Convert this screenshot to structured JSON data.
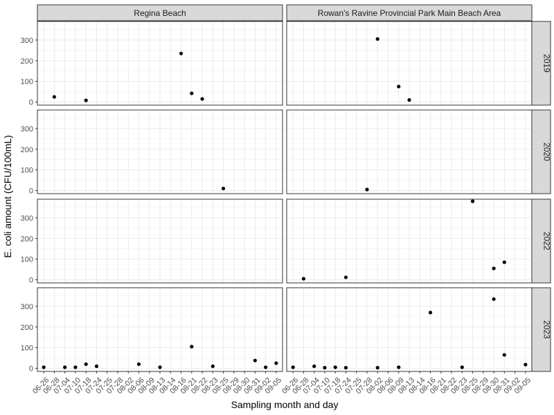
{
  "chart_data": {
    "type": "scatter",
    "facet_columns": [
      "Regina Beach",
      "Rowan's Ravine Provincial Park Main Beach Area"
    ],
    "facet_rows": [
      "2019",
      "2020",
      "2022",
      "2023"
    ],
    "xlabel": "Sampling month and day",
    "ylabel": "E. coli amount (CFU/100mL)",
    "x_categories": [
      "06-26",
      "06-28",
      "07-04",
      "07-10",
      "07-18",
      "07-24",
      "07-25",
      "07-28",
      "08-02",
      "08-06",
      "08-09",
      "08-13",
      "08-14",
      "08-16",
      "08-21",
      "08-22",
      "08-23",
      "08-25",
      "08-29",
      "08-30",
      "08-31",
      "09-02",
      "09-05"
    ],
    "x_tick_labels": [
      "06-26",
      "06-28",
      "07-04",
      "07-10",
      "07-18",
      "07-24",
      "07-25",
      "07-28",
      "08-02",
      "08-06",
      "08-09",
      "08-13",
      "08-14",
      "08-16",
      "08-21",
      "08-22",
      "08-23",
      "08-25",
      "08-29",
      "08-30",
      "08-31",
      "09-02",
      "09-05"
    ],
    "ylim": [
      -15,
      390
    ],
    "y_ticks": [
      0,
      100,
      200,
      300
    ],
    "grid": true,
    "legend": "none",
    "panels": [
      {
        "column": "Regina Beach",
        "row": "2019",
        "points": [
          [
            "06-28",
            25
          ],
          [
            "07-18",
            8
          ],
          [
            "08-16",
            235
          ],
          [
            "08-21",
            42
          ],
          [
            "08-22",
            15
          ]
        ]
      },
      {
        "column": "Rowan's Ravine Provincial Park Main Beach Area",
        "row": "2019",
        "points": [
          [
            "08-02",
            305
          ],
          [
            "08-09",
            75
          ],
          [
            "08-13",
            10
          ]
        ]
      },
      {
        "column": "Regina Beach",
        "row": "2020",
        "points": [
          [
            "08-25",
            10
          ]
        ]
      },
      {
        "column": "Rowan's Ravine Provincial Park Main Beach Area",
        "row": "2020",
        "points": [
          [
            "07-28",
            5
          ]
        ]
      },
      {
        "column": "Regina Beach",
        "row": "2022",
        "points": []
      },
      {
        "column": "Rowan's Ravine Provincial Park Main Beach Area",
        "row": "2022",
        "points": [
          [
            "06-28",
            5
          ],
          [
            "07-24",
            12
          ],
          [
            "08-25",
            380
          ],
          [
            "08-30",
            55
          ],
          [
            "08-31",
            85
          ]
        ]
      },
      {
        "column": "Regina Beach",
        "row": "2023",
        "points": [
          [
            "06-26",
            5
          ],
          [
            "07-04",
            5
          ],
          [
            "07-10",
            5
          ],
          [
            "07-18",
            20
          ],
          [
            "07-24",
            10
          ],
          [
            "08-06",
            20
          ],
          [
            "08-13",
            5
          ],
          [
            "08-21",
            105
          ],
          [
            "08-23",
            10
          ],
          [
            "08-31",
            38
          ],
          [
            "09-02",
            5
          ],
          [
            "09-05",
            25
          ]
        ]
      },
      {
        "column": "Rowan's Ravine Provincial Park Main Beach Area",
        "row": "2023",
        "points": [
          [
            "06-26",
            5
          ],
          [
            "07-04",
            10
          ],
          [
            "07-10",
            3
          ],
          [
            "07-18",
            5
          ],
          [
            "07-24",
            3
          ],
          [
            "08-02",
            3
          ],
          [
            "08-09",
            5
          ],
          [
            "08-16",
            270
          ],
          [
            "08-23",
            5
          ],
          [
            "08-30",
            335
          ],
          [
            "08-31",
            65
          ],
          [
            "09-05",
            18
          ]
        ]
      }
    ]
  }
}
